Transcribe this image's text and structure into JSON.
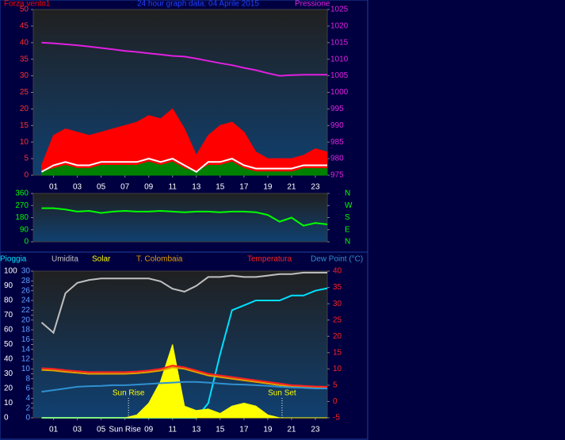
{
  "chart_data": [
    {
      "type": "line",
      "title": "24 hour graph data: 04 Aprile 2015",
      "x": [
        0,
        1,
        2,
        3,
        4,
        5,
        6,
        7,
        8,
        9,
        10,
        11,
        12,
        13,
        14,
        15,
        16,
        17,
        18,
        19,
        20,
        21,
        22,
        23,
        24
      ],
      "xlim": [
        -0.7,
        24
      ],
      "xticks": [
        {
          "value": 1,
          "label": "01"
        },
        {
          "value": 3,
          "label": "03"
        },
        {
          "value": 5,
          "label": "05"
        },
        {
          "value": 7,
          "label": "07"
        },
        {
          "value": 9,
          "label": "09"
        },
        {
          "value": 11,
          "label": "11"
        },
        {
          "value": 13,
          "label": "13"
        },
        {
          "value": 15,
          "label": "15"
        },
        {
          "value": 17,
          "label": "17"
        },
        {
          "value": 19,
          "label": "19"
        },
        {
          "value": 21,
          "label": "21"
        },
        {
          "value": 23,
          "label": "23"
        }
      ],
      "ylim": [
        0,
        50
      ],
      "yticks": [
        0,
        5,
        10,
        15,
        20,
        25,
        30,
        35,
        40,
        45,
        50
      ],
      "y2lim": [
        975,
        1025
      ],
      "y2ticks": [
        975,
        980,
        985,
        990,
        995,
        1000,
        1005,
        1010,
        1015,
        1020,
        1025
      ],
      "series": [
        {
          "name": "Forza vento1",
          "color": "#ff0000",
          "kind": "area",
          "values": [
            3,
            12,
            14,
            13,
            12,
            13,
            14,
            15,
            16,
            18,
            17,
            20,
            14,
            6,
            12,
            15,
            16,
            13,
            7,
            5,
            5,
            5,
            6,
            8,
            7
          ]
        },
        {
          "color": "#008000",
          "kind": "area",
          "values": [
            1,
            2,
            3,
            2,
            2,
            3,
            3,
            3,
            3,
            4,
            3,
            4,
            2,
            1,
            3,
            3,
            4,
            2,
            1,
            1,
            1,
            1,
            2,
            2,
            2
          ]
        },
        {
          "color": "#ffffff",
          "kind": "line",
          "values": [
            1,
            3,
            4,
            3,
            3,
            4,
            4,
            4,
            4,
            5,
            4,
            5,
            3,
            1,
            4,
            4,
            5,
            3,
            2,
            2,
            2,
            2,
            3,
            3,
            3
          ]
        },
        {
          "name": "Pressione",
          "color": "#e020e0",
          "kind": "line",
          "axis": "y2",
          "values": [
            1015,
            1014.8,
            1014.5,
            1014.2,
            1013.8,
            1013.4,
            1013,
            1012.5,
            1012.2,
            1011.8,
            1011.4,
            1011,
            1010.8,
            1010.2,
            1009.5,
            1008.8,
            1008.2,
            1007.4,
            1006.7,
            1005.8,
            1005,
            1005.2,
            1005.3,
            1005.3,
            1005.3
          ]
        }
      ]
    },
    {
      "type": "line",
      "x": [
        0,
        1,
        2,
        3,
        4,
        5,
        6,
        7,
        8,
        9,
        10,
        11,
        12,
        13,
        14,
        15,
        16,
        17,
        18,
        19,
        20,
        21,
        22,
        23,
        24
      ],
      "xlim": [
        -0.7,
        24
      ],
      "ylim": [
        0,
        360
      ],
      "yticks": [
        0,
        90,
        180,
        270,
        360
      ],
      "y2lim": [
        0,
        360
      ],
      "y2ticks": [
        {
          "value": 0,
          "label": "N"
        },
        {
          "value": 90,
          "label": "E"
        },
        {
          "value": 180,
          "label": "S"
        },
        {
          "value": 270,
          "label": "W"
        },
        {
          "value": 360,
          "label": "N"
        }
      ],
      "series": [
        {
          "color": "#00ff00",
          "kind": "line",
          "values": [
            250,
            250,
            240,
            225,
            230,
            215,
            225,
            230,
            225,
            225,
            230,
            225,
            220,
            225,
            225,
            220,
            225,
            225,
            220,
            200,
            150,
            180,
            120,
            140,
            130
          ]
        }
      ]
    },
    {
      "type": "line",
      "x": [
        0,
        1,
        2,
        3,
        4,
        5,
        6,
        7,
        8,
        9,
        10,
        11,
        12,
        13,
        14,
        15,
        16,
        17,
        18,
        19,
        20,
        21,
        22,
        23,
        24
      ],
      "xlim": [
        -0.7,
        24
      ],
      "xticks": [
        {
          "value": 1,
          "label": "01"
        },
        {
          "value": 3,
          "label": "03"
        },
        {
          "value": 5,
          "label": "05"
        },
        {
          "value": 7,
          "label": "Sun Rise"
        },
        {
          "value": 9,
          "label": "09"
        },
        {
          "value": 11,
          "label": "11"
        },
        {
          "value": 13,
          "label": "13"
        },
        {
          "value": 15,
          "label": "15"
        },
        {
          "value": 17,
          "label": "17"
        },
        {
          "value": 19,
          "label": "19"
        },
        {
          "value": 21,
          "label": "21"
        },
        {
          "value": 23,
          "label": "23"
        }
      ],
      "ylim": [
        0,
        100
      ],
      "yticks": [
        0,
        10,
        20,
        30,
        40,
        50,
        60,
        70,
        80,
        90,
        100
      ],
      "y3lim": [
        0,
        30
      ],
      "y3ticks": [
        0,
        2,
        4,
        6,
        8,
        10,
        12,
        14,
        16,
        18,
        20,
        22,
        24,
        26,
        28,
        30
      ],
      "y2lim": [
        -5,
        40
      ],
      "y2ticks": [
        -5,
        0,
        5,
        10,
        15,
        20,
        25,
        30,
        35,
        40
      ],
      "series": [
        {
          "name": "Pioggia",
          "color": "#00e0ff",
          "kind": "line",
          "axis": "y3",
          "values": [
            0,
            0,
            0,
            0,
            0,
            0,
            0,
            0,
            0,
            0,
            0,
            0,
            0,
            0,
            3,
            13,
            22,
            23,
            24,
            24,
            24,
            25,
            25,
            26,
            26.5
          ]
        },
        {
          "name": "Umidita",
          "color": "#c0c0c0",
          "kind": "line",
          "values": [
            65,
            58,
            85,
            92,
            94,
            95,
            95,
            95,
            95,
            95,
            93,
            88,
            86,
            90,
            96,
            96,
            97,
            96,
            96,
            97,
            98,
            98,
            99,
            99,
            99
          ]
        },
        {
          "name": "Solar",
          "color": "#ffff00",
          "kind": "area",
          "values": [
            0,
            0,
            0,
            0,
            0,
            0,
            0,
            0,
            2,
            10,
            25,
            50,
            8,
            5,
            6,
            3,
            8,
            10,
            8,
            2,
            0,
            0,
            0,
            0,
            0
          ]
        },
        {
          "name": "T. Colombaia",
          "color": "#e0a000",
          "kind": "line",
          "axis": "y2",
          "values": [
            9.7,
            9.5,
            9.1,
            8.8,
            8.5,
            8.5,
            8.5,
            8.5,
            8.7,
            9,
            9.5,
            10.5,
            10,
            9,
            8,
            7.5,
            7,
            6.5,
            6,
            5.5,
            5,
            4.6,
            4.4,
            4.2,
            4.1
          ]
        },
        {
          "name": "Temperatura",
          "color": "#ff2020",
          "kind": "line",
          "axis": "y2",
          "values": [
            10.2,
            10,
            9.6,
            9.3,
            9,
            9,
            9,
            9,
            9.2,
            9.5,
            10,
            11,
            10.5,
            9.5,
            8.5,
            8,
            7.5,
            7,
            6.5,
            6,
            5.5,
            5,
            4.8,
            4.6,
            4.5
          ]
        },
        {
          "name": "Dew Point (°C)",
          "color": "#3090d0",
          "kind": "line",
          "axis": "y2",
          "values": [
            3,
            3.5,
            4,
            4.5,
            4.7,
            4.8,
            5,
            5,
            5.2,
            5.4,
            5.6,
            5.8,
            6,
            6,
            5.8,
            5.5,
            5.3,
            5.2,
            5,
            4.8,
            4.5,
            4.3,
            4.2,
            4,
            4
          ]
        }
      ],
      "annotations": [
        {
          "text": "Sun Rise",
          "x": 7.3
        },
        {
          "text": "Sun Set",
          "x": 20.2
        }
      ]
    }
  ]
}
